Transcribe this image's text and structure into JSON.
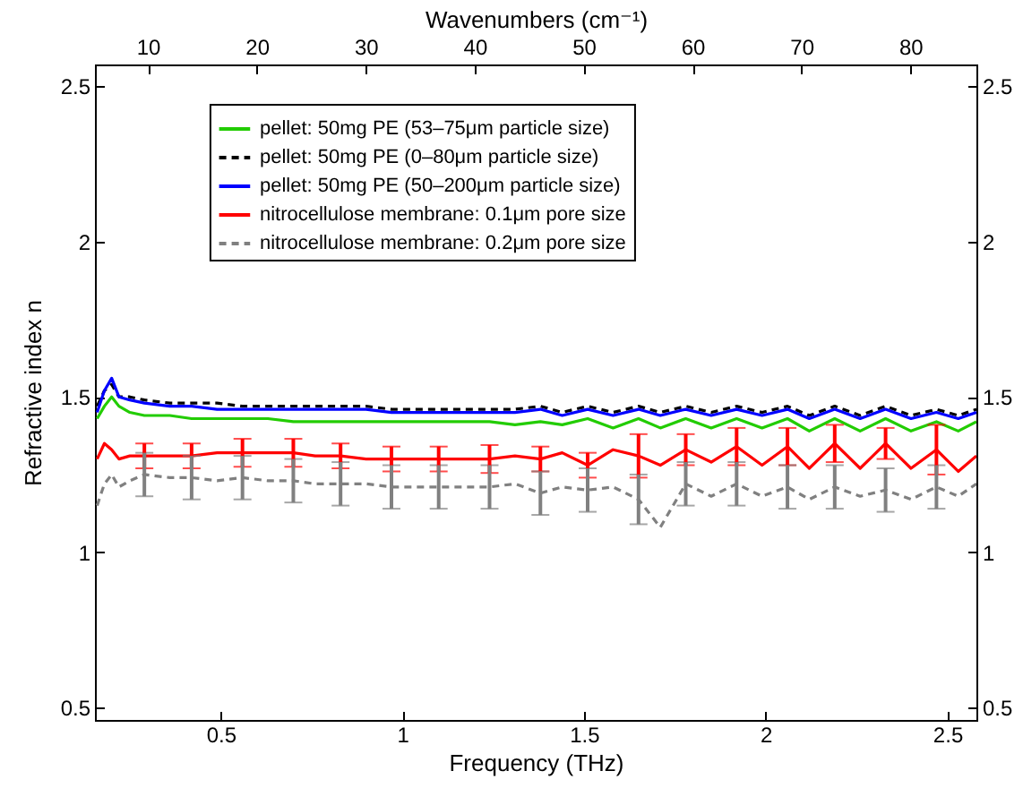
{
  "chart_data": {
    "type": "line",
    "xlabel": "Frequency (THz)",
    "ylabel": "Refractive index n",
    "x2label": "Wavenumbers (cm⁻¹)",
    "x": [
      0.16,
      0.18,
      0.2,
      0.22,
      0.25,
      0.29,
      0.36,
      0.42,
      0.49,
      0.56,
      0.63,
      0.7,
      0.76,
      0.83,
      0.9,
      0.97,
      1.04,
      1.1,
      1.17,
      1.24,
      1.31,
      1.38,
      1.44,
      1.51,
      1.58,
      1.65,
      1.71,
      1.78,
      1.85,
      1.92,
      1.99,
      2.06,
      2.12,
      2.19,
      2.26,
      2.33,
      2.4,
      2.47,
      2.53,
      2.58
    ],
    "series": [
      {
        "name": "pellet: 50mg PE (53–75μm particle size)",
        "color": "#22cc00",
        "line_style": "solid",
        "values": [
          1.43,
          1.47,
          1.5,
          1.47,
          1.45,
          1.44,
          1.44,
          1.43,
          1.43,
          1.43,
          1.43,
          1.42,
          1.42,
          1.42,
          1.42,
          1.42,
          1.42,
          1.42,
          1.42,
          1.42,
          1.41,
          1.42,
          1.41,
          1.43,
          1.4,
          1.43,
          1.4,
          1.43,
          1.4,
          1.43,
          1.4,
          1.43,
          1.39,
          1.43,
          1.39,
          1.43,
          1.39,
          1.42,
          1.39,
          1.42
        ]
      },
      {
        "name": "pellet: 50mg PE (0–80μm particle size)",
        "color": "#000000",
        "line_style": "dashed",
        "values": [
          1.47,
          1.52,
          1.54,
          1.5,
          1.5,
          1.49,
          1.48,
          1.48,
          1.48,
          1.47,
          1.47,
          1.47,
          1.47,
          1.47,
          1.47,
          1.46,
          1.46,
          1.46,
          1.46,
          1.46,
          1.46,
          1.47,
          1.45,
          1.47,
          1.45,
          1.47,
          1.45,
          1.47,
          1.45,
          1.47,
          1.45,
          1.47,
          1.44,
          1.47,
          1.44,
          1.47,
          1.44,
          1.46,
          1.44,
          1.46
        ]
      },
      {
        "name": "pellet: 50mg PE (50–200μm particle size)",
        "color": "#0000ff",
        "line_style": "solid",
        "values": [
          1.45,
          1.52,
          1.56,
          1.5,
          1.49,
          1.48,
          1.47,
          1.47,
          1.46,
          1.46,
          1.46,
          1.46,
          1.46,
          1.46,
          1.46,
          1.45,
          1.45,
          1.45,
          1.45,
          1.45,
          1.45,
          1.46,
          1.44,
          1.46,
          1.44,
          1.46,
          1.44,
          1.46,
          1.44,
          1.46,
          1.44,
          1.46,
          1.43,
          1.46,
          1.43,
          1.46,
          1.43,
          1.45,
          1.43,
          1.45
        ]
      },
      {
        "name": "nitrocellulose membrane: 0.1μm pore size",
        "color": "#ff0000",
        "line_style": "solid",
        "values": [
          1.3,
          1.35,
          1.33,
          1.3,
          1.31,
          1.31,
          1.31,
          1.31,
          1.32,
          1.32,
          1.32,
          1.32,
          1.31,
          1.31,
          1.3,
          1.3,
          1.3,
          1.3,
          1.3,
          1.3,
          1.31,
          1.3,
          1.32,
          1.28,
          1.33,
          1.31,
          1.28,
          1.33,
          1.29,
          1.34,
          1.28,
          1.34,
          1.27,
          1.35,
          1.27,
          1.35,
          1.27,
          1.33,
          1.26,
          1.31
        ],
        "errors": [
          null,
          null,
          null,
          null,
          null,
          0.04,
          null,
          0.04,
          null,
          0.045,
          null,
          0.045,
          null,
          0.04,
          null,
          0.04,
          null,
          0.04,
          null,
          0.045,
          null,
          0.04,
          null,
          0.04,
          null,
          0.07,
          null,
          0.05,
          null,
          0.06,
          null,
          0.06,
          null,
          0.06,
          null,
          0.05,
          null,
          0.08,
          null,
          null
        ]
      },
      {
        "name": "nitrocellulose membrane: 0.2μm pore size",
        "color": "#808080",
        "line_style": "dashed",
        "values": [
          1.15,
          1.22,
          1.25,
          1.21,
          1.23,
          1.25,
          1.24,
          1.24,
          1.23,
          1.24,
          1.23,
          1.23,
          1.22,
          1.22,
          1.22,
          1.21,
          1.21,
          1.21,
          1.21,
          1.21,
          1.22,
          1.19,
          1.21,
          1.2,
          1.21,
          1.17,
          1.08,
          1.22,
          1.18,
          1.22,
          1.18,
          1.21,
          1.17,
          1.21,
          1.18,
          1.2,
          1.17,
          1.21,
          1.18,
          1.22
        ],
        "errors": [
          null,
          null,
          null,
          null,
          null,
          0.07,
          null,
          0.07,
          null,
          0.07,
          null,
          0.07,
          null,
          0.07,
          null,
          0.07,
          null,
          0.07,
          null,
          0.07,
          null,
          0.07,
          null,
          0.07,
          null,
          0.08,
          null,
          0.07,
          null,
          0.07,
          null,
          0.07,
          null,
          0.07,
          null,
          0.07,
          null,
          0.07,
          null,
          null
        ]
      }
    ],
    "xlim": [
      0.154,
      2.58
    ],
    "xticks": [
      0.5,
      1,
      1.5,
      2,
      2.5
    ],
    "x2lim": [
      5.14,
      86.06
    ],
    "x2ticks": [
      10,
      20,
      30,
      40,
      50,
      60,
      70,
      80
    ],
    "ylim": [
      0.46,
      2.57
    ],
    "yticks": [
      0.5,
      1,
      1.5,
      2,
      2.5
    ],
    "y2lim": [
      0.46,
      2.57
    ],
    "y2ticks": [
      0.5,
      1,
      1.5,
      2,
      2.5
    ],
    "legend": "top",
    "grid": false
  }
}
